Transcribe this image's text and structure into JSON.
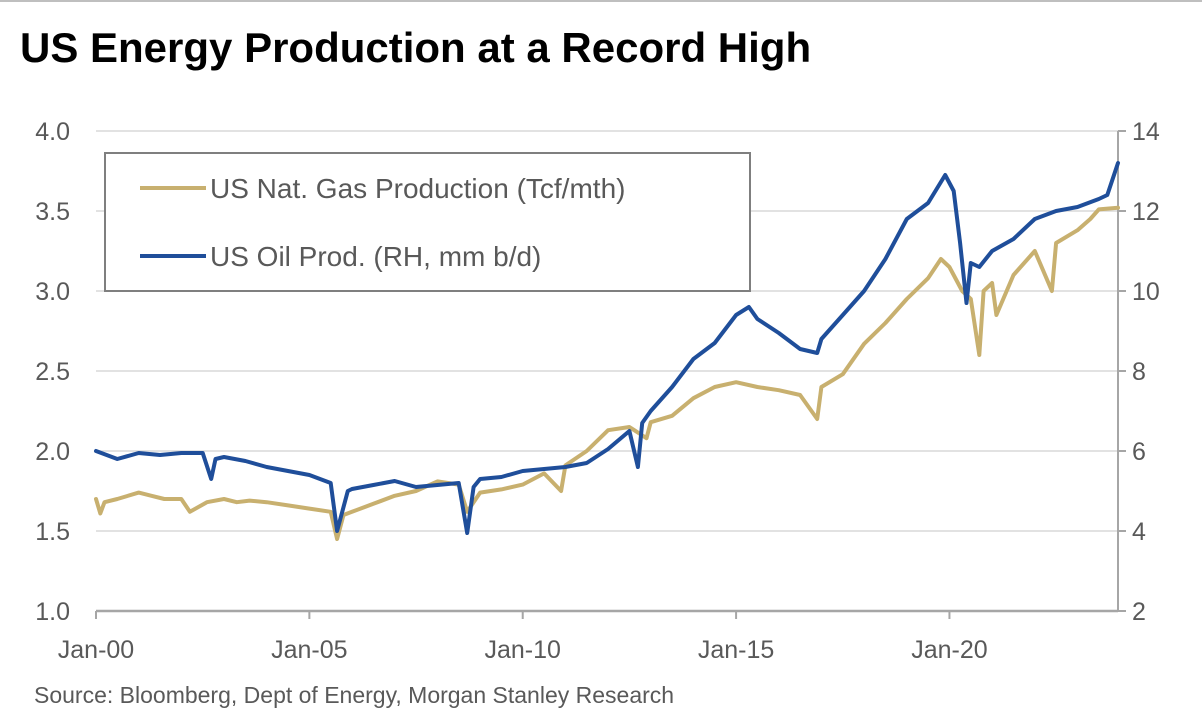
{
  "title": "US Energy Production at a Record High",
  "source": "Source: Bloomberg, Dept of Energy, Morgan Stanley Research",
  "colors": {
    "gas": "#c8b06f",
    "oil": "#1f4e9a",
    "grid": "#d9d9d9",
    "axis": "#a6a6a6"
  },
  "chart_data": {
    "type": "line",
    "x_tick_labels": [
      "Jan-00",
      "Jan-05",
      "Jan-10",
      "Jan-15",
      "Jan-20"
    ],
    "x_ticks": [
      2000,
      2005,
      2010,
      2015,
      2020
    ],
    "xlim": [
      2000,
      2023.95
    ],
    "left_axis": {
      "ylim": [
        1.0,
        4.0
      ],
      "ticks": [
        "1.0",
        "1.5",
        "2.0",
        "2.5",
        "3.0",
        "3.5",
        "4.0"
      ]
    },
    "right_axis": {
      "ylim": [
        2,
        14
      ],
      "ticks": [
        "2",
        "4",
        "6",
        "8",
        "10",
        "12",
        "14"
      ]
    },
    "grid": true,
    "legend": {
      "placement": "top-left",
      "entries": [
        "US Nat. Gas Production (Tcf/mth)",
        "US Oil Prod. (RH, mm b/d)"
      ]
    },
    "series": [
      {
        "name": "US Nat. Gas Production (Tcf/mth)",
        "axis": "left",
        "x": [
          2000.0,
          2000.1,
          2000.2,
          2000.5,
          2001.0,
          2001.3,
          2001.6,
          2002.0,
          2002.2,
          2002.6,
          2003.0,
          2003.3,
          2003.6,
          2004.0,
          2004.5,
          2005.0,
          2005.5,
          2005.65,
          2005.8,
          2006.0,
          2006.5,
          2007.0,
          2007.5,
          2008.0,
          2008.5,
          2008.7,
          2009.0,
          2009.5,
          2010.0,
          2010.5,
          2010.9,
          2011.0,
          2011.5,
          2012.0,
          2012.5,
          2012.9,
          2013.0,
          2013.5,
          2014.0,
          2014.5,
          2015.0,
          2015.5,
          2016.0,
          2016.5,
          2016.9,
          2017.0,
          2017.5,
          2018.0,
          2018.5,
          2019.0,
          2019.5,
          2019.8,
          2020.0,
          2020.3,
          2020.5,
          2020.7,
          2020.8,
          2021.0,
          2021.1,
          2021.5,
          2022.0,
          2022.4,
          2022.5,
          2023.0,
          2023.3,
          2023.5,
          2023.95
        ],
        "values": [
          1.7,
          1.61,
          1.68,
          1.7,
          1.74,
          1.72,
          1.7,
          1.7,
          1.62,
          1.68,
          1.7,
          1.68,
          1.69,
          1.68,
          1.66,
          1.64,
          1.62,
          1.45,
          1.6,
          1.62,
          1.67,
          1.72,
          1.75,
          1.81,
          1.79,
          1.62,
          1.74,
          1.76,
          1.79,
          1.86,
          1.75,
          1.91,
          2.0,
          2.13,
          2.15,
          2.08,
          2.18,
          2.22,
          2.33,
          2.4,
          2.43,
          2.4,
          2.38,
          2.35,
          2.2,
          2.4,
          2.48,
          2.67,
          2.8,
          2.95,
          3.08,
          3.2,
          3.15,
          3.0,
          2.95,
          2.6,
          3.0,
          3.05,
          2.85,
          3.1,
          3.25,
          3.0,
          3.3,
          3.38,
          3.45,
          3.51,
          3.52
        ]
      },
      {
        "name": "US Oil Prod. (RH, mm b/d)",
        "axis": "right",
        "x": [
          2000.0,
          2000.5,
          2001.0,
          2001.5,
          2002.0,
          2002.5,
          2002.7,
          2002.8,
          2003.0,
          2003.5,
          2004.0,
          2004.5,
          2005.0,
          2005.5,
          2005.65,
          2005.9,
          2006.0,
          2006.5,
          2007.0,
          2007.5,
          2008.0,
          2008.5,
          2008.7,
          2008.85,
          2009.0,
          2009.5,
          2010.0,
          2010.5,
          2011.0,
          2011.5,
          2012.0,
          2012.5,
          2012.7,
          2012.8,
          2013.0,
          2013.5,
          2014.0,
          2014.5,
          2015.0,
          2015.3,
          2015.5,
          2016.0,
          2016.5,
          2016.9,
          2017.0,
          2017.5,
          2018.0,
          2018.5,
          2019.0,
          2019.5,
          2019.9,
          2020.1,
          2020.25,
          2020.4,
          2020.5,
          2020.7,
          2021.0,
          2021.5,
          2022.0,
          2022.5,
          2023.0,
          2023.5,
          2023.7,
          2023.95
        ],
        "values": [
          6.0,
          5.8,
          5.95,
          5.9,
          5.95,
          5.95,
          5.3,
          5.8,
          5.85,
          5.75,
          5.6,
          5.5,
          5.4,
          5.2,
          4.0,
          5.0,
          5.05,
          5.15,
          5.25,
          5.1,
          5.15,
          5.2,
          3.95,
          5.1,
          5.3,
          5.35,
          5.5,
          5.55,
          5.6,
          5.7,
          6.05,
          6.5,
          5.6,
          6.7,
          7.0,
          7.6,
          8.3,
          8.7,
          9.4,
          9.6,
          9.3,
          8.95,
          8.55,
          8.45,
          8.8,
          9.4,
          10.0,
          10.8,
          11.8,
          12.2,
          12.9,
          12.5,
          11.2,
          9.7,
          10.7,
          10.6,
          11.0,
          11.3,
          11.8,
          12.0,
          12.1,
          12.3,
          12.4,
          13.2
        ]
      }
    ]
  }
}
